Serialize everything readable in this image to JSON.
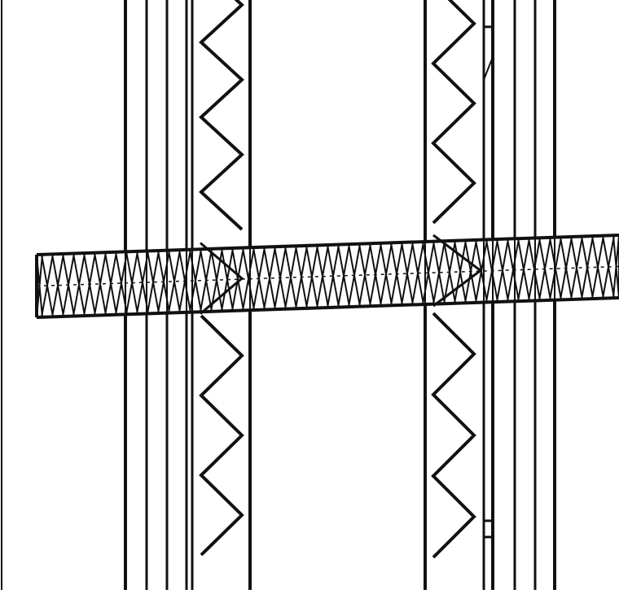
{
  "drawing": {
    "background": "#ffffff",
    "line_color": "#111111",
    "elements": {
      "vertical_members": 10,
      "zigzag_insulation_bands": 2,
      "diagonal_hatched_beam": 1
    }
  }
}
